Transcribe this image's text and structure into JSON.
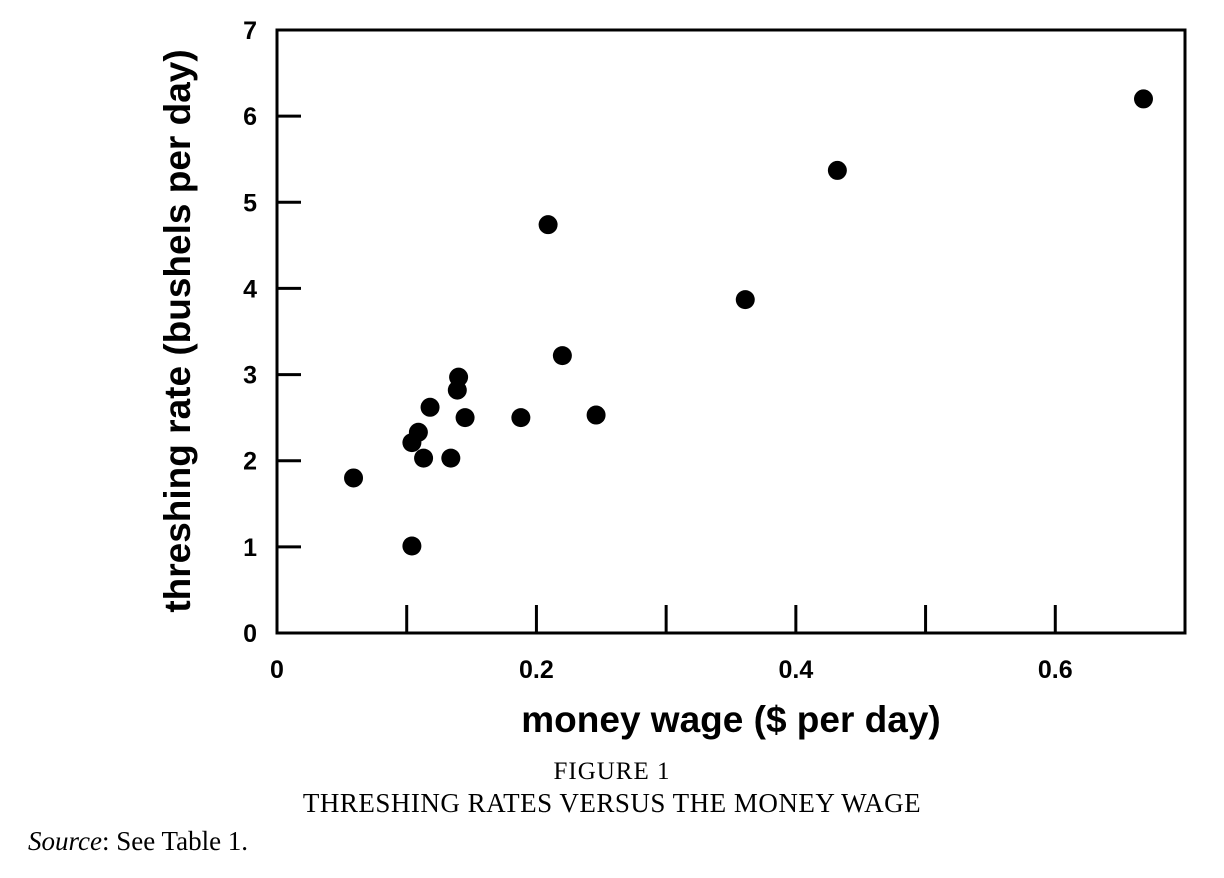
{
  "chart_data": {
    "type": "scatter",
    "xlabel": "money wage ($ per day)",
    "ylabel": "threshing rate (bushels per day)",
    "xlim": [
      0,
      0.7
    ],
    "ylim": [
      0,
      7
    ],
    "x_ticks": [
      0,
      0.1,
      0.2,
      0.3,
      0.4,
      0.5,
      0.6,
      0.7
    ],
    "x_tick_labels": [
      "0",
      "",
      "0.2",
      "",
      "0.4",
      "",
      "0.6",
      ""
    ],
    "y_ticks": [
      0,
      1,
      2,
      3,
      4,
      5,
      6,
      7
    ],
    "y_tick_labels": [
      "0",
      "1",
      "2",
      "3",
      "4",
      "5",
      "6",
      "7"
    ],
    "grid": false,
    "legend": "none",
    "marker_color": "#000000",
    "points": [
      {
        "x": 0.059,
        "y": 1.8
      },
      {
        "x": 0.104,
        "y": 1.01
      },
      {
        "x": 0.104,
        "y": 2.21
      },
      {
        "x": 0.109,
        "y": 2.33
      },
      {
        "x": 0.113,
        "y": 2.03
      },
      {
        "x": 0.118,
        "y": 2.62
      },
      {
        "x": 0.134,
        "y": 2.03
      },
      {
        "x": 0.139,
        "y": 2.82
      },
      {
        "x": 0.14,
        "y": 2.97
      },
      {
        "x": 0.145,
        "y": 2.5
      },
      {
        "x": 0.188,
        "y": 2.5
      },
      {
        "x": 0.209,
        "y": 4.74
      },
      {
        "x": 0.22,
        "y": 3.22
      },
      {
        "x": 0.246,
        "y": 2.53
      },
      {
        "x": 0.361,
        "y": 3.87
      },
      {
        "x": 0.432,
        "y": 5.37
      },
      {
        "x": 0.668,
        "y": 6.2
      }
    ]
  },
  "caption": {
    "figure_label": "FIGURE 1",
    "figure_title": "THRESHING RATES VERSUS THE MONEY WAGE",
    "source_label": "Source",
    "source_text": ": See Table 1."
  }
}
